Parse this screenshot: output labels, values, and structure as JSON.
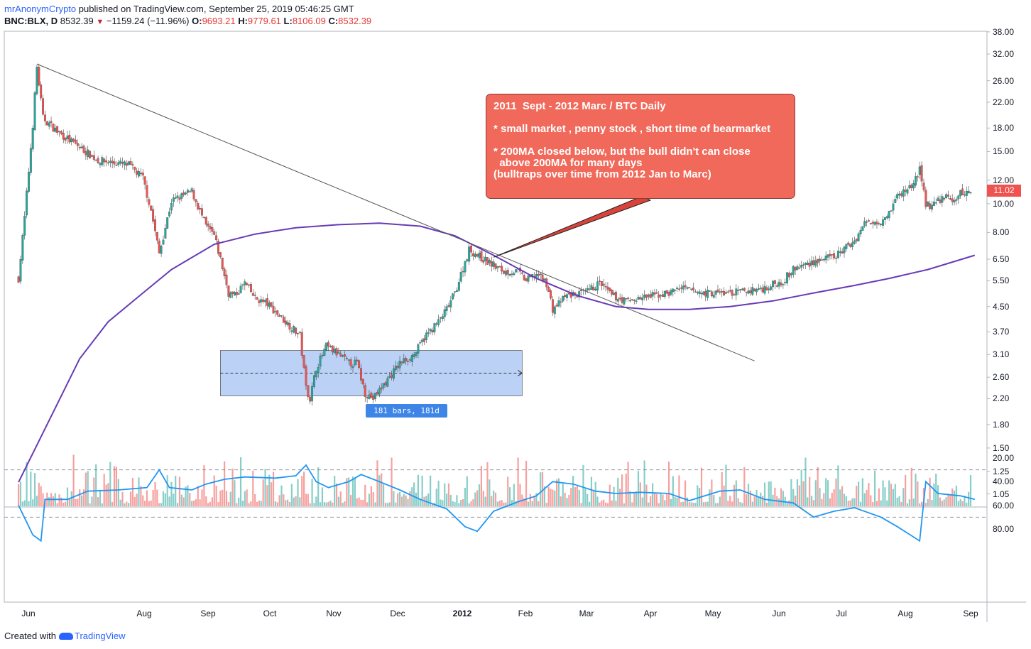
{
  "header": {
    "author": "mrAnonymCrypto",
    "published": " published on TradingView.com, September 25, 2019 05:46:25 GMT",
    "symbol": "BNC:BLX, D",
    "price": "8532.39",
    "change": "−1159.24 (−11.96%)",
    "o_label": "O:",
    "o_value": "9693.21",
    "h_label": "H:",
    "h_value": "9779.61",
    "l_label": "L:",
    "l_value": "8106.09",
    "c_label": "C:",
    "c_value": "8532.39"
  },
  "annotation": {
    "line1": "2011  Sept - 2012 Marc / BTC Daily",
    "line2": "* small market , penny stock , short time of bearmarket",
    "line3": "* 200MA closed below, but the bull didn't can close",
    "line4": "  above 200MA for many days",
    "line5": "(bulltraps over time from 2012 Jan to Marc)"
  },
  "price_tag": "11.02",
  "range_label": "181 bars, 181d",
  "footer": {
    "created_with": "Created with",
    "brand": "TradingView"
  },
  "colors": {
    "up": "#26a69a",
    "down": "#ef5350",
    "ma": "#673ab7",
    "rsi": "#2196f3",
    "range_box": "#3d7be6"
  },
  "chart_data": [
    {
      "type": "candlestick",
      "scale": "log",
      "ma": "200MA",
      "y_ticks": [
        "38.00",
        "32.00",
        "26.00",
        "22.00",
        "18.00",
        "15.00",
        "12.00",
        "10.00",
        "8.00",
        "6.50",
        "5.50",
        "4.50",
        "3.70",
        "3.10",
        "2.60",
        "2.20",
        "1.80",
        "1.50",
        "1.25",
        "1.05"
      ],
      "x_ticks": [
        "Jun",
        "Aug",
        "Sep",
        "Oct",
        "Nov",
        "Dec",
        "2012",
        "Feb",
        "Mar",
        "Apr",
        "May",
        "Jun",
        "Jul",
        "Aug",
        "Sep"
      ],
      "close_path": [
        [
          "2011-06-01",
          5.6
        ],
        [
          "2011-06-04",
          9.0
        ],
        [
          "2011-06-08",
          18.5
        ],
        [
          "2011-06-10",
          28.9
        ],
        [
          "2011-06-13",
          19.5
        ],
        [
          "2011-06-20",
          17.5
        ],
        [
          "2011-07-01",
          15.5
        ],
        [
          "2011-07-10",
          14.0
        ],
        [
          "2011-07-25",
          13.5
        ],
        [
          "2011-08-01",
          12.2
        ],
        [
          "2011-08-05",
          9.5
        ],
        [
          "2011-08-09",
          6.8
        ],
        [
          "2011-08-15",
          10.2
        ],
        [
          "2011-08-25",
          11.0
        ],
        [
          "2011-09-01",
          8.4
        ],
        [
          "2011-09-05",
          7.8
        ],
        [
          "2011-09-08",
          6.5
        ],
        [
          "2011-09-12",
          5.0
        ],
        [
          "2011-09-15",
          4.9
        ],
        [
          "2011-09-20",
          5.4
        ],
        [
          "2011-09-25",
          4.8
        ],
        [
          "2011-10-01",
          4.6
        ],
        [
          "2011-10-10",
          4.0
        ],
        [
          "2011-10-17",
          3.6
        ],
        [
          "2011-10-20",
          2.4
        ],
        [
          "2011-10-22",
          2.2
        ],
        [
          "2011-10-25",
          2.8
        ],
        [
          "2011-10-30",
          3.3
        ],
        [
          "2011-11-05",
          3.1
        ],
        [
          "2011-11-10",
          2.9
        ],
        [
          "2011-11-14",
          2.9
        ],
        [
          "2011-11-18",
          2.3
        ],
        [
          "2011-11-22",
          2.2
        ],
        [
          "2011-11-28",
          2.5
        ],
        [
          "2011-12-05",
          2.9
        ],
        [
          "2011-12-12",
          3.1
        ],
        [
          "2011-12-18",
          3.6
        ],
        [
          "2011-12-24",
          4.0
        ],
        [
          "2011-12-28",
          4.4
        ],
        [
          "2012-01-01",
          5.0
        ],
        [
          "2012-01-08",
          7.0
        ],
        [
          "2012-01-15",
          6.5
        ],
        [
          "2012-01-20",
          6.2
        ],
        [
          "2012-01-25",
          5.9
        ],
        [
          "2012-02-01",
          5.9
        ],
        [
          "2012-02-05",
          5.5
        ],
        [
          "2012-02-10",
          5.8
        ],
        [
          "2012-02-15",
          5.4
        ],
        [
          "2012-02-18",
          4.4
        ],
        [
          "2012-02-25",
          4.9
        ],
        [
          "2012-03-05",
          5.0
        ],
        [
          "2012-03-12",
          5.4
        ],
        [
          "2012-03-18",
          4.9
        ],
        [
          "2012-03-25",
          4.7
        ],
        [
          "2012-04-01",
          4.8
        ],
        [
          "2012-04-15",
          5.0
        ],
        [
          "2012-04-20",
          5.2
        ],
        [
          "2012-05-01",
          5.0
        ],
        [
          "2012-05-15",
          5.0
        ],
        [
          "2012-05-25",
          5.1
        ],
        [
          "2012-06-01",
          5.2
        ],
        [
          "2012-06-10",
          5.5
        ],
        [
          "2012-06-15",
          6.0
        ],
        [
          "2012-06-25",
          6.4
        ],
        [
          "2012-07-05",
          6.6
        ],
        [
          "2012-07-15",
          7.5
        ],
        [
          "2012-07-20",
          8.6
        ],
        [
          "2012-07-28",
          8.8
        ],
        [
          "2012-08-01",
          9.4
        ],
        [
          "2012-08-05",
          10.6
        ],
        [
          "2012-08-12",
          11.5
        ],
        [
          "2012-08-16",
          13.0
        ],
        [
          "2012-08-19",
          10.0
        ],
        [
          "2012-08-22",
          9.8
        ],
        [
          "2012-08-28",
          10.6
        ],
        [
          "2012-09-01",
          10.2
        ],
        [
          "2012-09-05",
          10.8
        ],
        [
          "2012-09-10",
          11.0
        ]
      ],
      "ma_path": [
        [
          "2011-06-01",
          1.15
        ],
        [
          "2011-06-15",
          1.8
        ],
        [
          "2011-07-01",
          3.0
        ],
        [
          "2011-07-15",
          4.0
        ],
        [
          "2011-08-01",
          5.0
        ],
        [
          "2011-08-15",
          6.0
        ],
        [
          "2011-09-05",
          7.3
        ],
        [
          "2011-09-25",
          7.9
        ],
        [
          "2011-10-15",
          8.3
        ],
        [
          "2011-11-05",
          8.5
        ],
        [
          "2011-11-25",
          8.6
        ],
        [
          "2011-12-15",
          8.4
        ],
        [
          "2012-01-01",
          7.8
        ],
        [
          "2012-01-20",
          6.7
        ],
        [
          "2012-02-10",
          5.6
        ],
        [
          "2012-03-01",
          4.9
        ],
        [
          "2012-03-20",
          4.5
        ],
        [
          "2012-04-05",
          4.4
        ],
        [
          "2012-04-25",
          4.4
        ],
        [
          "2012-05-15",
          4.5
        ],
        [
          "2012-06-05",
          4.7
        ],
        [
          "2012-06-25",
          5.0
        ],
        [
          "2012-07-15",
          5.3
        ],
        [
          "2012-08-01",
          5.6
        ],
        [
          "2012-08-20",
          6.0
        ],
        [
          "2012-09-12",
          6.7
        ]
      ],
      "trendline": [
        [
          "2011-06-10",
          29.6
        ],
        [
          "2012-05-27",
          2.95
        ]
      ],
      "range_box": {
        "from": "2011-09-08",
        "to": "2012-02-03",
        "top": 3.2,
        "bottom": 2.25
      },
      "callout_pointer": [
        "2012-01-20",
        6.6
      ]
    },
    {
      "type": "line",
      "name": "RSI",
      "y_ticks": [
        "80.00",
        "60.00",
        "40.00",
        "20.00"
      ],
      "bands": [
        30,
        70
      ],
      "path": [
        [
          "2011-06-01",
          60
        ],
        [
          "2011-06-08",
          85
        ],
        [
          "2011-06-12",
          90
        ],
        [
          "2011-06-14",
          55
        ],
        [
          "2011-06-25",
          55
        ],
        [
          "2011-07-05",
          48
        ],
        [
          "2011-07-20",
          47
        ],
        [
          "2011-08-03",
          45
        ],
        [
          "2011-08-09",
          30
        ],
        [
          "2011-08-14",
          45
        ],
        [
          "2011-08-25",
          47
        ],
        [
          "2011-09-01",
          42
        ],
        [
          "2011-09-10",
          38
        ],
        [
          "2011-09-20",
          36
        ],
        [
          "2011-10-05",
          37
        ],
        [
          "2011-10-15",
          35
        ],
        [
          "2011-10-20",
          26
        ],
        [
          "2011-10-25",
          40
        ],
        [
          "2011-10-31",
          45
        ],
        [
          "2011-11-10",
          40
        ],
        [
          "2011-11-16",
          34
        ],
        [
          "2011-11-25",
          40
        ],
        [
          "2011-12-05",
          47
        ],
        [
          "2011-12-15",
          55
        ],
        [
          "2011-12-28",
          63
        ],
        [
          "2012-01-06",
          78
        ],
        [
          "2012-01-12",
          82
        ],
        [
          "2012-01-20",
          65
        ],
        [
          "2012-02-01",
          57
        ],
        [
          "2012-02-10",
          52
        ],
        [
          "2012-02-18",
          40
        ],
        [
          "2012-02-28",
          42
        ],
        [
          "2012-03-10",
          48
        ],
        [
          "2012-03-20",
          50
        ],
        [
          "2012-04-01",
          49
        ],
        [
          "2012-04-15",
          50
        ],
        [
          "2012-04-25",
          56
        ],
        [
          "2012-05-10",
          48
        ],
        [
          "2012-05-20",
          47
        ],
        [
          "2012-06-01",
          55
        ],
        [
          "2012-06-15",
          58
        ],
        [
          "2012-06-25",
          70
        ],
        [
          "2012-07-05",
          65
        ],
        [
          "2012-07-15",
          62
        ],
        [
          "2012-07-28",
          70
        ],
        [
          "2012-08-05",
          78
        ],
        [
          "2012-08-16",
          90
        ],
        [
          "2012-08-19",
          40
        ],
        [
          "2012-08-25",
          50
        ],
        [
          "2012-09-05",
          52
        ],
        [
          "2012-09-12",
          55
        ]
      ]
    }
  ]
}
